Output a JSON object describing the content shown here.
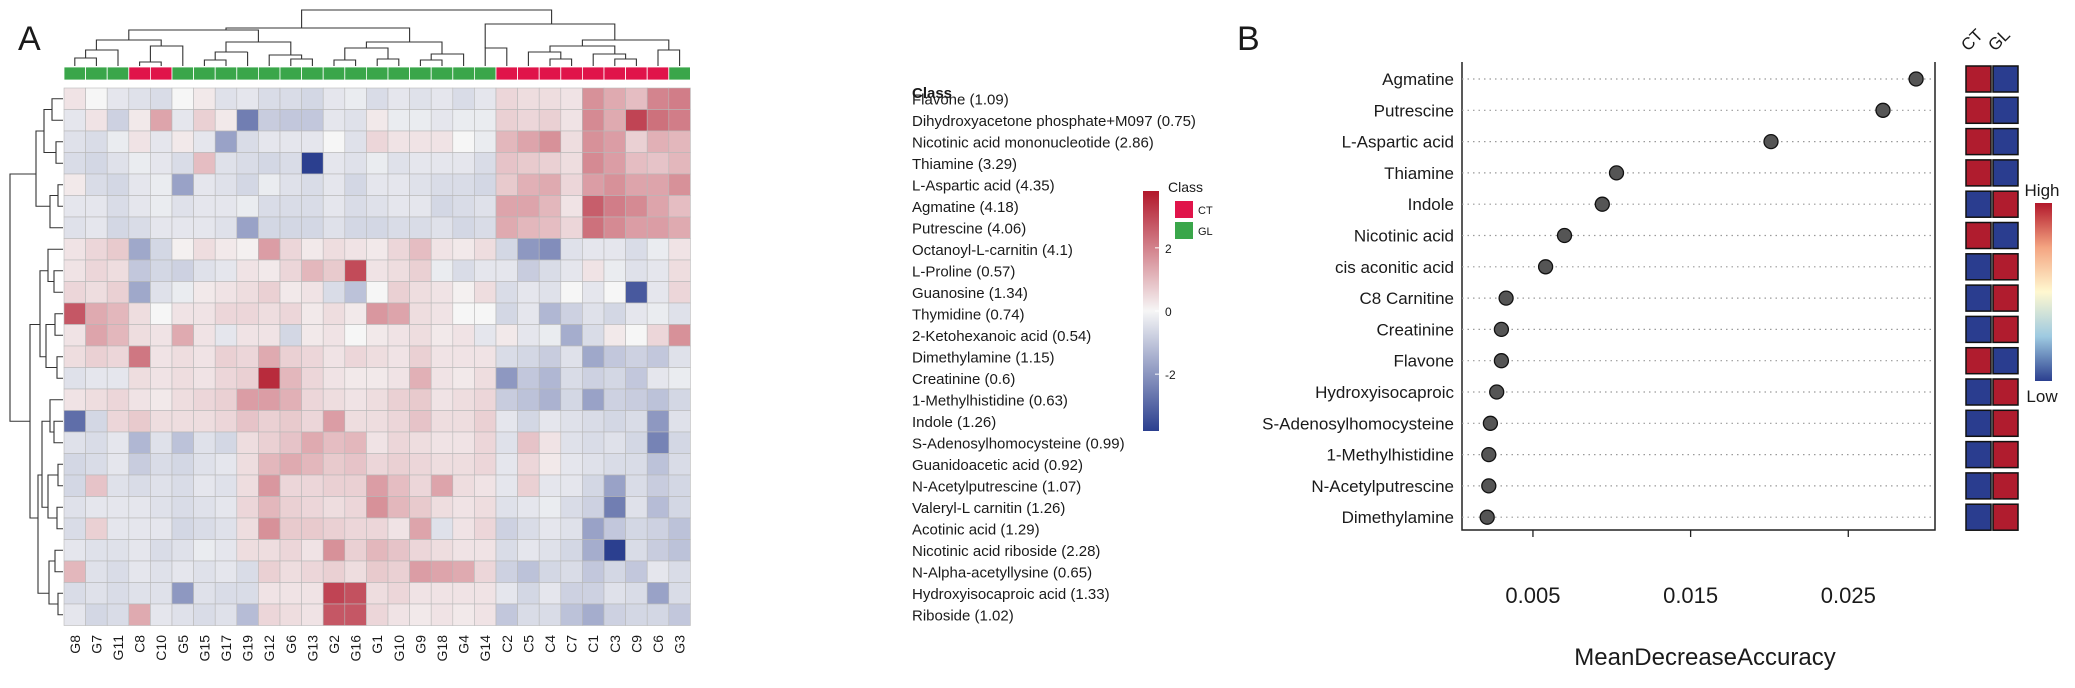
{
  "chart_data": [
    {
      "type": "heatmap",
      "panel_label": "A",
      "annotation_header": "Class",
      "columns": [
        "G8",
        "G7",
        "G11",
        "C8",
        "C10",
        "G5",
        "G15",
        "G17",
        "G19",
        "G12",
        "G6",
        "G13",
        "G2",
        "G16",
        "G1",
        "G10",
        "G9",
        "G18",
        "G4",
        "G14",
        "C2",
        "C5",
        "C4",
        "C7",
        "C1",
        "C3",
        "C9",
        "C6",
        "G3"
      ],
      "column_classes": [
        "GL",
        "GL",
        "GL",
        "CT",
        "CT",
        "GL",
        "GL",
        "GL",
        "GL",
        "GL",
        "GL",
        "GL",
        "GL",
        "GL",
        "GL",
        "GL",
        "GL",
        "GL",
        "GL",
        "GL",
        "CT",
        "CT",
        "CT",
        "CT",
        "CT",
        "CT",
        "CT",
        "CT",
        "GL"
      ],
      "rows": [
        "Flavone (1.09)",
        "Dihydroxyacetone phosphate+M097 (0.75)",
        "Nicotinic acid mononucleotide (2.86)",
        "Thiamine (3.29)",
        "L-Aspartic acid (4.35)",
        "Agmatine (4.18)",
        "Putrescine (4.06)",
        "Octanoyl-L-carnitin (4.1)",
        "L-Proline (0.57)",
        "Guanosine (1.34)",
        "Thymidine (0.74)",
        "2-Ketohexanoic acid (0.54)",
        "Dimethylamine (1.15)",
        "Creatinine (0.6)",
        "1-Methylhistidine (0.63)",
        "Indole (1.26)",
        "S-Adenosylhomocysteine (0.99)",
        "Guanidoacetic acid (0.92)",
        "N-Acetylputrescine (1.07)",
        "Valeryl-L carnitin (1.26)",
        "Acotinic acid (1.29)",
        "Nicotinic acid riboside (2.28)",
        "N-Alpha-acetyllysine (0.65)",
        "Hydroxyisocaproic acid (1.33)",
        "Riboside (1.02)"
      ],
      "values": [
        [
          0.3,
          0.0,
          -0.3,
          -0.4,
          -0.5,
          0.0,
          0.2,
          -0.4,
          -0.3,
          -0.5,
          -0.5,
          -0.6,
          -0.3,
          -0.2,
          -0.5,
          -0.3,
          -0.4,
          -0.3,
          -0.5,
          -0.3,
          0.5,
          0.4,
          0.4,
          0.3,
          1.6,
          1.2,
          0.9,
          1.8,
          1.9
        ],
        [
          -0.3,
          0.3,
          -0.7,
          0.2,
          1.3,
          -0.3,
          0.6,
          0.2,
          -2.3,
          -0.8,
          -0.9,
          -0.9,
          -0.3,
          -0.4,
          0.2,
          -0.2,
          -0.2,
          -0.3,
          -0.2,
          -0.2,
          0.6,
          0.5,
          0.6,
          0.3,
          1.7,
          1.2,
          2.8,
          2.1,
          1.9
        ],
        [
          -0.4,
          -0.5,
          -0.2,
          0.3,
          -0.3,
          0.2,
          -0.3,
          -1.6,
          -0.5,
          -0.3,
          -0.3,
          -0.3,
          0.0,
          -0.4,
          0.5,
          0.3,
          0.3,
          0.3,
          0.0,
          -0.2,
          1.0,
          1.3,
          1.6,
          0.4,
          1.6,
          1.4,
          0.6,
          1.1,
          1.0
        ],
        [
          -0.5,
          -0.6,
          -0.4,
          -0.2,
          -0.3,
          -0.5,
          0.9,
          -0.4,
          -0.5,
          -0.6,
          -0.5,
          -3.5,
          -0.3,
          -0.4,
          -0.2,
          -0.4,
          -0.3,
          -0.3,
          -0.3,
          -0.5,
          0.8,
          0.7,
          0.6,
          0.4,
          1.7,
          1.4,
          0.9,
          0.8,
          1.0
        ],
        [
          0.2,
          -0.5,
          -0.6,
          -0.3,
          -0.2,
          -1.6,
          -0.3,
          -0.4,
          -0.6,
          -0.2,
          -0.4,
          -0.5,
          -0.3,
          -0.6,
          -0.3,
          -0.3,
          -0.4,
          -0.5,
          -0.5,
          -0.6,
          0.7,
          1.1,
          1.2,
          0.5,
          1.4,
          1.6,
          1.3,
          1.3,
          1.6
        ],
        [
          -0.3,
          -0.3,
          -0.5,
          -0.3,
          -0.2,
          -0.4,
          -0.3,
          -0.3,
          -0.2,
          -0.5,
          -0.5,
          -0.5,
          -0.3,
          -0.5,
          -0.4,
          -0.3,
          -0.3,
          -0.6,
          -0.5,
          -0.4,
          1.3,
          1.3,
          1.0,
          0.3,
          2.4,
          1.9,
          1.7,
          1.3,
          0.9
        ],
        [
          -0.4,
          -0.3,
          -0.6,
          -0.5,
          -0.3,
          -0.3,
          -0.3,
          -0.4,
          -1.6,
          -0.6,
          -0.6,
          -0.6,
          -0.4,
          -0.6,
          -0.6,
          -0.5,
          -0.5,
          -0.4,
          -0.6,
          -0.5,
          1.2,
          1.0,
          0.9,
          0.5,
          2.1,
          1.7,
          1.4,
          1.4,
          1.2
        ],
        [
          0.3,
          0.5,
          0.7,
          -1.5,
          -0.6,
          0.1,
          0.4,
          0.2,
          0.1,
          1.4,
          0.5,
          0.2,
          0.4,
          0.3,
          0.2,
          0.5,
          0.9,
          0.3,
          0.2,
          0.4,
          -0.6,
          -1.8,
          -2.0,
          -0.4,
          -0.3,
          -0.3,
          -0.5,
          -0.2,
          0.3
        ],
        [
          0.3,
          0.5,
          0.4,
          -0.9,
          -0.6,
          -0.7,
          -0.4,
          -0.3,
          0.3,
          0.2,
          0.5,
          1.0,
          0.7,
          2.7,
          0.3,
          0.4,
          0.6,
          -0.2,
          -0.5,
          -0.3,
          -0.3,
          -0.8,
          -0.5,
          -0.3,
          0.3,
          -0.2,
          -0.4,
          -0.3,
          0.4
        ],
        [
          0.5,
          0.4,
          0.6,
          -1.5,
          -0.4,
          -0.2,
          0.2,
          0.3,
          0.4,
          0.6,
          0.2,
          0.3,
          -0.5,
          -1.0,
          0.0,
          0.6,
          0.4,
          0.3,
          0.1,
          0.4,
          -0.5,
          -0.3,
          -0.4,
          0.0,
          -0.3,
          0.0,
          -3.0,
          -0.3,
          0.5
        ],
        [
          2.5,
          1.2,
          1.0,
          0.4,
          0.0,
          0.3,
          0.3,
          0.5,
          0.5,
          0.4,
          0.5,
          0.2,
          0.4,
          0.2,
          1.5,
          1.3,
          0.4,
          0.3,
          0.0,
          0.0,
          -0.6,
          -0.3,
          -1.2,
          -0.7,
          -0.4,
          -0.6,
          -0.3,
          -0.2,
          -0.4
        ],
        [
          0.3,
          1.3,
          1.0,
          0.4,
          0.3,
          1.2,
          0.3,
          -0.3,
          0.3,
          0.3,
          -0.6,
          0.2,
          0.3,
          0.0,
          0.2,
          0.3,
          0.4,
          0.2,
          0.3,
          -0.3,
          0.2,
          -0.3,
          -0.2,
          -1.4,
          -0.5,
          0.2,
          0.0,
          0.5,
          1.6
        ],
        [
          0.4,
          0.6,
          0.5,
          2.0,
          0.3,
          0.4,
          0.3,
          0.6,
          0.5,
          1.2,
          0.6,
          0.5,
          0.3,
          0.5,
          0.4,
          0.3,
          0.6,
          0.3,
          0.3,
          0.3,
          -0.5,
          -0.6,
          -0.8,
          -0.4,
          -1.5,
          -0.9,
          -0.7,
          -0.9,
          -0.4
        ],
        [
          -0.4,
          -0.3,
          -0.3,
          0.4,
          0.3,
          0.4,
          0.3,
          0.5,
          0.6,
          3.2,
          1.0,
          0.5,
          0.3,
          0.2,
          0.2,
          0.3,
          1.1,
          0.3,
          0.2,
          0.4,
          -1.8,
          -0.9,
          -1.2,
          -0.5,
          -0.7,
          -0.6,
          -0.9,
          -0.3,
          -0.2
        ],
        [
          0.3,
          0.4,
          0.5,
          0.3,
          0.2,
          0.4,
          0.5,
          0.6,
          1.4,
          1.4,
          1.1,
          0.5,
          0.4,
          0.3,
          0.4,
          0.6,
          0.7,
          0.3,
          0.4,
          0.5,
          -0.8,
          -1.0,
          -1.3,
          -0.6,
          -1.6,
          -0.7,
          -0.8,
          -1.0,
          -0.6
        ],
        [
          -2.6,
          -0.6,
          0.5,
          0.7,
          0.4,
          0.4,
          0.4,
          0.5,
          0.8,
          0.6,
          0.7,
          0.5,
          1.4,
          0.4,
          0.4,
          0.5,
          0.8,
          0.4,
          0.4,
          0.6,
          -0.3,
          -0.6,
          -0.3,
          -0.4,
          -0.5,
          -0.6,
          -0.5,
          -1.8,
          -0.4
        ],
        [
          -0.4,
          -0.5,
          -0.3,
          -1.2,
          -0.4,
          -1.0,
          -0.4,
          -0.6,
          0.4,
          0.6,
          0.8,
          1.2,
          0.9,
          1.0,
          0.3,
          0.5,
          0.4,
          0.3,
          0.3,
          0.5,
          -0.4,
          0.8,
          0.3,
          -0.4,
          -0.5,
          -0.4,
          -0.6,
          -2.2,
          -0.6
        ],
        [
          -0.6,
          -0.5,
          -0.3,
          -0.8,
          -0.5,
          -0.6,
          -0.4,
          -0.3,
          0.4,
          1.0,
          1.2,
          1.0,
          0.7,
          0.8,
          0.5,
          0.6,
          0.5,
          0.4,
          0.4,
          0.5,
          -0.3,
          0.5,
          0.2,
          -0.3,
          -0.4,
          -0.5,
          -0.5,
          -1.0,
          -0.5
        ],
        [
          -0.6,
          0.8,
          -0.4,
          -0.5,
          -0.4,
          -0.5,
          -0.3,
          -0.4,
          0.4,
          1.5,
          0.5,
          0.5,
          0.6,
          0.6,
          1.4,
          0.9,
          0.5,
          1.3,
          0.4,
          0.3,
          -0.3,
          0.6,
          -0.3,
          -0.3,
          -0.6,
          -1.6,
          -0.5,
          -0.8,
          -0.6
        ],
        [
          -0.4,
          -0.3,
          -0.3,
          -0.3,
          -0.4,
          -0.5,
          -0.4,
          -0.3,
          0.5,
          1.0,
          0.6,
          0.5,
          0.4,
          0.5,
          1.6,
          1.0,
          0.7,
          0.4,
          0.3,
          0.4,
          -0.4,
          -0.3,
          -0.2,
          -0.5,
          -0.7,
          -2.3,
          -0.4,
          -1.1,
          -0.6
        ],
        [
          -0.5,
          0.6,
          -0.3,
          -0.3,
          -0.3,
          -0.6,
          -0.5,
          -0.4,
          0.4,
          1.6,
          0.7,
          0.7,
          0.6,
          0.5,
          0.5,
          0.3,
          1.3,
          -0.4,
          0.3,
          0.5,
          -0.7,
          -0.5,
          -0.3,
          -0.4,
          -1.6,
          -0.9,
          -0.6,
          -0.7,
          -1.0
        ],
        [
          -0.3,
          -0.4,
          -0.4,
          -0.3,
          -0.5,
          -0.4,
          -0.2,
          -0.3,
          0.4,
          0.4,
          0.5,
          0.3,
          1.6,
          0.6,
          1.0,
          0.8,
          0.5,
          0.4,
          0.3,
          0.3,
          -0.5,
          -0.3,
          -0.4,
          -0.6,
          -1.4,
          -3.7,
          -0.5,
          -0.8,
          -1.0
        ],
        [
          1.0,
          -0.4,
          -0.5,
          -0.3,
          -0.4,
          -0.3,
          -0.4,
          -0.3,
          -0.5,
          0.6,
          0.4,
          0.5,
          0.6,
          0.4,
          0.7,
          0.6,
          1.4,
          1.3,
          1.2,
          0.5,
          -0.7,
          -1.0,
          -0.6,
          -0.5,
          -0.9,
          -0.6,
          -0.9,
          -0.3,
          -0.5
        ],
        [
          -0.5,
          -0.4,
          -0.5,
          -0.4,
          -0.4,
          -1.8,
          -0.4,
          -0.5,
          -0.5,
          0.3,
          0.3,
          0.3,
          2.8,
          2.6,
          0.4,
          0.5,
          0.3,
          0.3,
          0.3,
          0.3,
          -0.3,
          -0.6,
          -0.3,
          -0.7,
          -0.7,
          -0.4,
          -0.5,
          -1.6,
          -0.5
        ],
        [
          -0.3,
          -0.6,
          -0.5,
          1.2,
          -0.3,
          -0.4,
          -0.5,
          -0.4,
          -1.1,
          0.5,
          0.4,
          0.3,
          2.5,
          2.5,
          0.5,
          0.3,
          0.2,
          0.3,
          0.2,
          0.3,
          -0.9,
          -0.5,
          -0.5,
          -1.0,
          -1.4,
          -0.7,
          -0.6,
          -0.6,
          -0.9
        ]
      ],
      "legend": {
        "title": "Class",
        "entries": [
          {
            "label": "CT",
            "color": "#e0144a"
          },
          {
            "label": "GL",
            "color": "#3aa64a"
          }
        ]
      },
      "colorbar": {
        "ticks": [
          "2",
          "0",
          "-2"
        ],
        "tick_values": [
          2,
          0,
          -2
        ],
        "range": [
          -3.8,
          3.8
        ]
      },
      "colors": {
        "low": "#2b3f8f",
        "mid": "#f6f6f6",
        "high": "#b2182b",
        "ct": "#e0144a",
        "gl": "#3aa64a"
      }
    },
    {
      "type": "scatter",
      "subtype": "dot-plot",
      "panel_label": "B",
      "categories": [
        "Agmatine",
        "Putrescine",
        "L-Aspartic acid",
        "Thiamine",
        "Indole",
        "Nicotinic acid",
        "cis aconitic acid",
        "C8 Carnitine",
        "Creatinine",
        "Flavone",
        "Hydroxyisocaproic",
        "S-Adenosylhomocysteine",
        "1-Methylhistidine",
        "N-Acetylputrescine",
        "Dimethylamine"
      ],
      "values": [
        0.0293,
        0.0272,
        0.0201,
        0.0103,
        0.0094,
        0.007,
        0.0058,
        0.0033,
        0.003,
        0.003,
        0.0027,
        0.0023,
        0.0022,
        0.0022,
        0.0021
      ],
      "xlabel": "MeanDecreaseAccuracy",
      "xticks": [
        "0.005",
        "0.015",
        "0.025"
      ],
      "xtick_values": [
        0.005,
        0.015,
        0.025
      ],
      "xlim": [
        0.0005,
        0.0305
      ],
      "class_headers": [
        "CT",
        "GL"
      ],
      "class_levels": [
        [
          "H",
          "L"
        ],
        [
          "H",
          "L"
        ],
        [
          "H",
          "L"
        ],
        [
          "H",
          "L"
        ],
        [
          "L",
          "H"
        ],
        [
          "H",
          "L"
        ],
        [
          "L",
          "H"
        ],
        [
          "L",
          "H"
        ],
        [
          "L",
          "H"
        ],
        [
          "H",
          "L"
        ],
        [
          "L",
          "H"
        ],
        [
          "L",
          "H"
        ],
        [
          "L",
          "H"
        ],
        [
          "L",
          "H"
        ],
        [
          "L",
          "H"
        ]
      ],
      "colorbar": {
        "high_label": "High",
        "low_label": "Low"
      },
      "colors": {
        "high": "#b01c2e",
        "low": "#2a3d8f",
        "dot": "#555555"
      }
    }
  ]
}
